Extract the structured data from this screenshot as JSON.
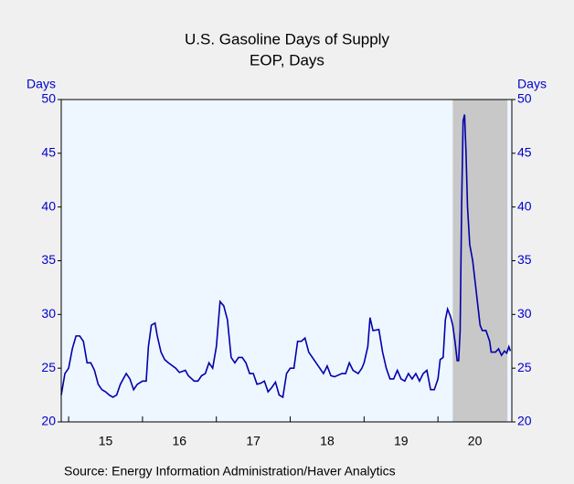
{
  "chart_data": {
    "type": "line",
    "title": "U.S. Gasoline Days of Supply",
    "subtitle": "EOP, Days",
    "y_label": "Days",
    "y2_label": "Days",
    "source": "Source:  Energy Information Administration/Haver Analytics",
    "xlim": [
      2014.9,
      2021.0
    ],
    "xticks": [
      {
        "value": 2015.5,
        "label": "15"
      },
      {
        "value": 2016.5,
        "label": "16"
      },
      {
        "value": 2017.5,
        "label": "17"
      },
      {
        "value": 2018.5,
        "label": "18"
      },
      {
        "value": 2019.5,
        "label": "19"
      },
      {
        "value": 2020.5,
        "label": "20"
      }
    ],
    "ylim": [
      20,
      50
    ],
    "yticks": [
      20,
      25,
      30,
      35,
      40,
      45,
      50
    ],
    "y2lim": [
      20,
      50
    ],
    "y2ticks": [
      20,
      25,
      30,
      35,
      40,
      45,
      50
    ],
    "shaded_region": [
      2020.2,
      2020.94
    ],
    "shade_color": "#c8c8c8",
    "series": [
      {
        "name": "Gasoline Days of Supply",
        "color": "#0000aa",
        "x": [
          2014.9,
          2014.95,
          2015.0,
          2015.05,
          2015.1,
          2015.15,
          2015.2,
          2015.25,
          2015.3,
          2015.35,
          2015.4,
          2015.45,
          2015.5,
          2015.55,
          2015.6,
          2015.65,
          2015.7,
          2015.78,
          2015.83,
          2015.88,
          2015.93,
          2016.0,
          2016.05,
          2016.08,
          2016.12,
          2016.17,
          2016.2,
          2016.25,
          2016.3,
          2016.35,
          2016.45,
          2016.5,
          2016.58,
          2016.62,
          2016.7,
          2016.75,
          2016.8,
          2016.85,
          2016.9,
          2016.95,
          2017.0,
          2017.05,
          2017.1,
          2017.15,
          2017.2,
          2017.25,
          2017.3,
          2017.35,
          2017.4,
          2017.45,
          2017.5,
          2017.55,
          2017.6,
          2017.65,
          2017.7,
          2017.75,
          2017.8,
          2017.85,
          2017.9,
          2017.95,
          2018.0,
          2018.05,
          2018.1,
          2018.15,
          2018.2,
          2018.25,
          2018.3,
          2018.35,
          2018.4,
          2018.45,
          2018.5,
          2018.55,
          2018.6,
          2018.7,
          2018.75,
          2018.8,
          2018.85,
          2018.92,
          2018.97,
          2019.0,
          2019.05,
          2019.08,
          2019.12,
          2019.2,
          2019.25,
          2019.3,
          2019.35,
          2019.4,
          2019.45,
          2019.5,
          2019.55,
          2019.6,
          2019.65,
          2019.7,
          2019.75,
          2019.8,
          2019.85,
          2019.9,
          2019.95,
          2020.0,
          2020.03,
          2020.07,
          2020.1,
          2020.13,
          2020.17,
          2020.2,
          2020.23,
          2020.26,
          2020.28,
          2020.3,
          2020.32,
          2020.34,
          2020.36,
          2020.38,
          2020.4,
          2020.43,
          2020.47,
          2020.52,
          2020.57,
          2020.6,
          2020.65,
          2020.7,
          2020.72,
          2020.78,
          2020.82,
          2020.86,
          2020.9,
          2020.93,
          2020.96,
          2020.98
        ],
        "values": [
          22.5,
          24.5,
          25,
          26.8,
          28,
          28,
          27.5,
          25.5,
          25.5,
          24.8,
          23.5,
          23,
          22.8,
          22.5,
          22.3,
          22.5,
          23.5,
          24.5,
          24,
          23,
          23.5,
          23.8,
          23.8,
          27,
          29,
          29.2,
          28,
          26.5,
          25.8,
          25.5,
          25,
          24.6,
          24.8,
          24.3,
          23.8,
          23.8,
          24.3,
          24.5,
          25.5,
          25,
          27,
          31.2,
          30.8,
          29.5,
          26,
          25.5,
          26,
          26,
          25.5,
          24.5,
          24.5,
          23.5,
          23.6,
          23.8,
          22.8,
          23.2,
          23.7,
          22.5,
          22.3,
          24.5,
          25,
          25,
          27.5,
          27.5,
          27.8,
          26.5,
          26,
          25.5,
          25,
          24.5,
          25.2,
          24.3,
          24.2,
          24.5,
          24.5,
          25.5,
          24.8,
          24.5,
          25,
          25.5,
          27,
          29.7,
          28.5,
          28.6,
          26.5,
          25,
          24,
          24,
          24.8,
          24,
          23.8,
          24.5,
          24,
          24.5,
          23.8,
          24.5,
          24.8,
          23,
          23,
          24,
          25.8,
          26,
          29.5,
          30.5,
          29.8,
          29,
          27.5,
          25.7,
          25.7,
          28.5,
          40,
          48,
          48.6,
          45,
          40,
          36.5,
          35,
          32,
          29,
          28.5,
          28.5,
          27.5,
          26.5,
          26.5,
          26.8,
          26.2,
          26.6,
          26.4,
          27,
          26.6
        ]
      }
    ]
  }
}
